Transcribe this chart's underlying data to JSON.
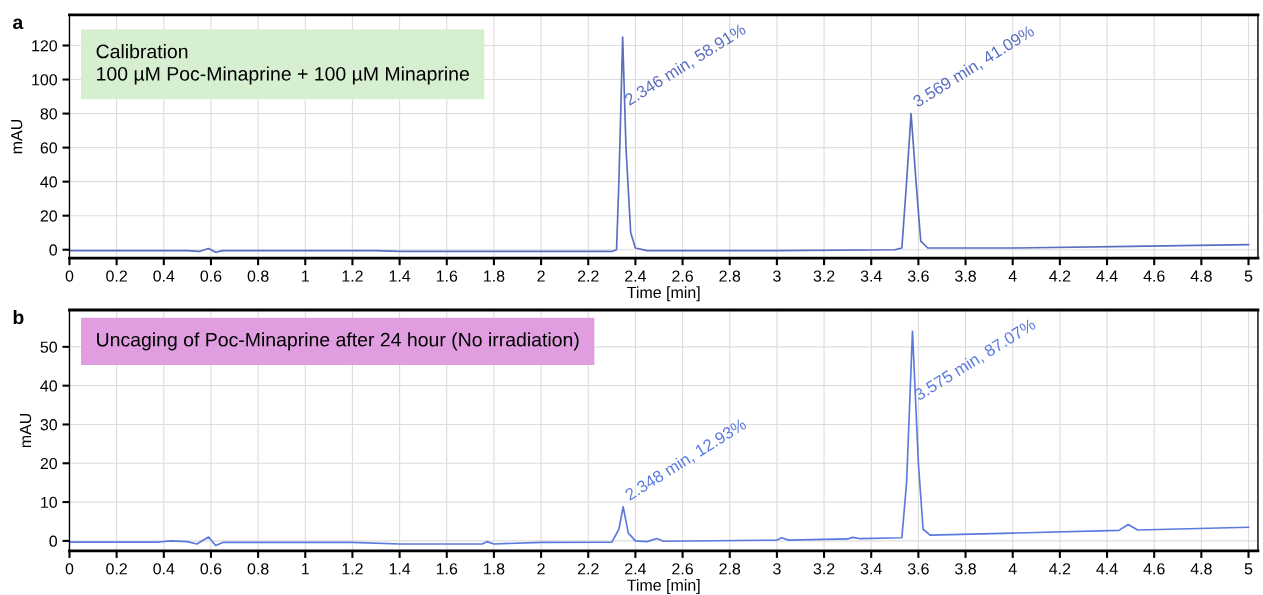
{
  "chart_data": [
    {
      "type": "line",
      "title": "a",
      "xlabel": "Time [min]",
      "ylabel": "mAU",
      "annotations": [
        "Calibration\n100 µM Poc-Minaprine + 100 µM Minaprine",
        {
          "text": "2.346 min, 58.91%",
          "x": 2.346,
          "y": 125
        },
        {
          "text": "3.569 min, 41.09%",
          "x": 3.569,
          "y": 80
        }
      ],
      "series": [
        {
          "color": "#5a6ec0",
          "x": [
            0,
            0.5,
            0.55,
            0.59,
            0.62,
            0.65,
            1.3,
            1.4,
            2.3,
            2.32,
            2.33,
            2.346,
            2.36,
            2.38,
            2.4,
            2.45,
            3.0,
            3.5,
            3.53,
            3.55,
            3.569,
            3.59,
            3.61,
            3.64,
            4.0,
            4.5,
            5.0
          ],
          "values": [
            -0.5,
            -0.5,
            -1,
            0.7,
            -1.5,
            -0.5,
            -0.5,
            -1,
            -1,
            0,
            40,
            125,
            60,
            10,
            1,
            -0.5,
            -0.5,
            0,
            1,
            40,
            80,
            40,
            5,
            1,
            1,
            2,
            3
          ]
        }
      ],
      "xlim": [
        0,
        5.04
      ],
      "ylim": [
        -5,
        138
      ],
      "xticks": [
        0,
        0.2,
        0.4,
        0.6,
        0.8,
        1,
        1.2,
        1.4,
        1.6,
        1.8,
        2,
        2.2,
        2.4,
        2.6,
        2.8,
        3,
        3.2,
        3.4,
        3.6,
        3.8,
        4,
        4.2,
        4.4,
        4.6,
        4.8,
        5
      ],
      "yticks": [
        0,
        20,
        40,
        60,
        80,
        100,
        120
      ],
      "grid": true
    },
    {
      "type": "line",
      "title": "b",
      "xlabel": "Time [min]",
      "ylabel": "mAU",
      "annotations": [
        "Uncaging of Poc-Minaprine after 24 hour (No irradiation)",
        {
          "text": "2.348 min, 12.93%",
          "x": 2.348,
          "y": 8.8
        },
        {
          "text": "3.575 min, 87.07%",
          "x": 3.575,
          "y": 54
        }
      ],
      "series": [
        {
          "color": "#5a7ae0",
          "x": [
            0,
            0.38,
            0.43,
            0.5,
            0.54,
            0.59,
            0.62,
            0.65,
            1.2,
            1.4,
            1.75,
            1.77,
            1.8,
            2.0,
            2.3,
            2.33,
            2.348,
            2.37,
            2.4,
            2.45,
            2.49,
            2.52,
            3.0,
            3.02,
            3.05,
            3.3,
            3.32,
            3.35,
            3.53,
            3.55,
            3.575,
            3.6,
            3.62,
            3.65,
            4.0,
            4.45,
            4.49,
            4.53,
            5.0
          ],
          "values": [
            -0.3,
            -0.3,
            0,
            -0.2,
            -0.8,
            1,
            -1.2,
            -0.4,
            -0.4,
            -0.8,
            -0.8,
            -0.2,
            -0.8,
            -0.4,
            -0.3,
            3,
            8.8,
            2,
            0,
            -0.2,
            0.6,
            -0.1,
            0.2,
            0.8,
            0.2,
            0.5,
            0.9,
            0.6,
            0.8,
            15,
            54,
            20,
            3,
            1.5,
            2,
            2.7,
            4.2,
            2.8,
            3.5
          ]
        }
      ],
      "xlim": [
        0,
        5.04
      ],
      "ylim": [
        -2.6,
        59.5
      ],
      "xticks": [
        0,
        0.2,
        0.4,
        0.6,
        0.8,
        1,
        1.2,
        1.4,
        1.6,
        1.8,
        2,
        2.2,
        2.4,
        2.6,
        2.8,
        3,
        3.2,
        3.4,
        3.6,
        3.8,
        4,
        4.2,
        4.4,
        4.6,
        4.8,
        5
      ],
      "yticks": [
        0,
        10,
        20,
        30,
        40,
        50
      ],
      "grid": true
    }
  ]
}
